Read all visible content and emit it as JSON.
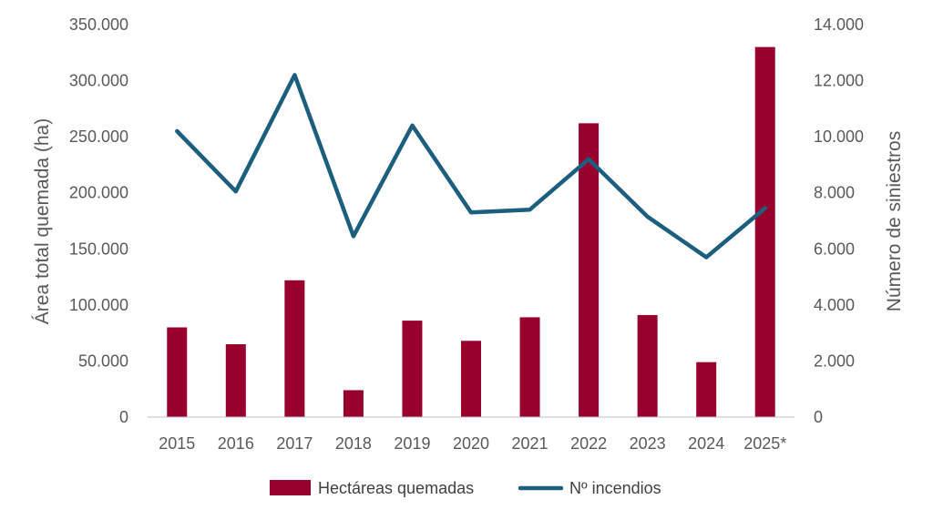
{
  "chart_data": {
    "type": "bar+line",
    "categories": [
      "2015",
      "2016",
      "2017",
      "2018",
      "2019",
      "2020",
      "2021",
      "2022",
      "2023",
      "2024",
      "2025*"
    ],
    "series": [
      {
        "name": "Hectáreas quemadas",
        "type": "bar",
        "axis": "left",
        "color": "#98002E",
        "values": [
          80000,
          65000,
          122000,
          24000,
          86000,
          68000,
          89000,
          262000,
          91000,
          49000,
          330000
        ]
      },
      {
        "name": "Nº incendios",
        "type": "line",
        "axis": "right",
        "color": "#1B5E7E",
        "values": [
          10200,
          8050,
          12200,
          6450,
          10400,
          7300,
          7400,
          9200,
          7150,
          5700,
          7450
        ]
      }
    ],
    "ylabel": "Área total quemada (ha)",
    "ylabel_right": "Número de siniestros",
    "ylim": [
      0,
      350000
    ],
    "ylim_right": [
      0,
      14000
    ],
    "yticks": [
      "0",
      "50.000",
      "100.000",
      "150.000",
      "200.000",
      "250.000",
      "300.000",
      "350.000"
    ],
    "yticks_right": [
      "0",
      "2.000",
      "4.000",
      "6.000",
      "8.000",
      "10.000",
      "12.000",
      "14.000"
    ],
    "grid": false,
    "legend_position": "bottom"
  }
}
